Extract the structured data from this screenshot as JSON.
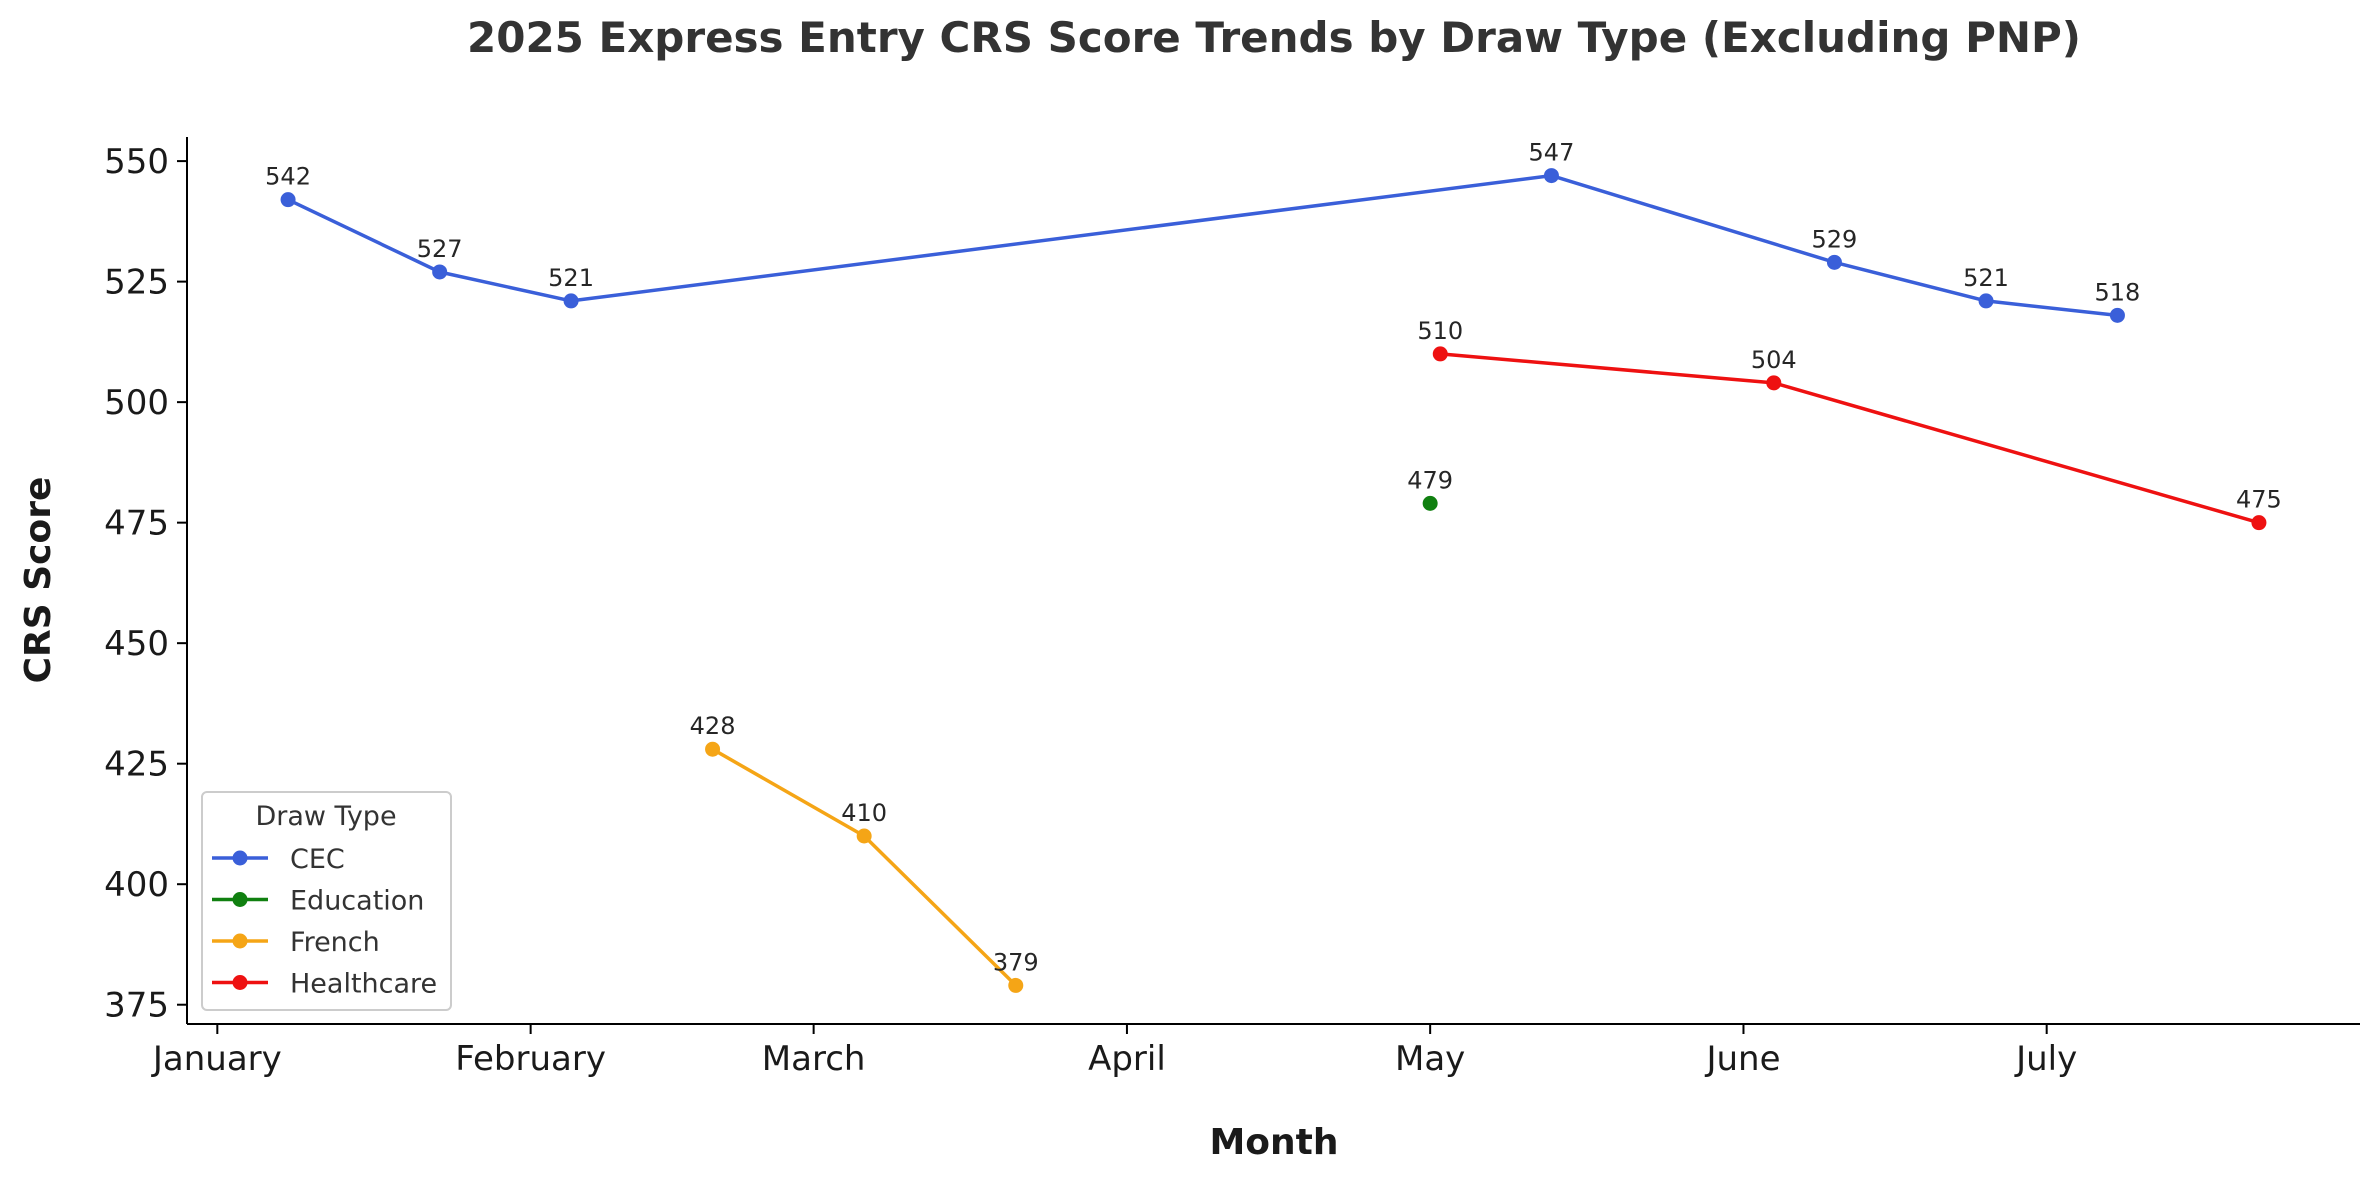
{
  "chart_data": {
    "type": "line",
    "title": "2025 Express Entry CRS Score Trends by Draw Type (Excluding PNP)",
    "xlabel": "Month",
    "ylabel": "CRS Score",
    "x_ticks": [
      {
        "label": "January",
        "date": "2025-01-01"
      },
      {
        "label": "February",
        "date": "2025-02-01"
      },
      {
        "label": "March",
        "date": "2025-03-01"
      },
      {
        "label": "April",
        "date": "2025-04-01"
      },
      {
        "label": "May",
        "date": "2025-05-01"
      },
      {
        "label": "June",
        "date": "2025-06-01"
      },
      {
        "label": "July",
        "date": "2025-07-01"
      }
    ],
    "xlim": [
      "2024-12-29",
      "2025-08-01"
    ],
    "ylim": [
      371,
      555
    ],
    "y_ticks": [
      375,
      400,
      425,
      450,
      475,
      500,
      525,
      550
    ],
    "grid": false,
    "legend": {
      "title": "Draw Type",
      "placement": "lower-left"
    },
    "series": [
      {
        "name": "CEC",
        "color": "#3a5fd9",
        "points": [
          {
            "x": "2025-01-08",
            "y": 542
          },
          {
            "x": "2025-01-23",
            "y": 527
          },
          {
            "x": "2025-02-05",
            "y": 521
          },
          {
            "x": "2025-05-13",
            "y": 547
          },
          {
            "x": "2025-06-10",
            "y": 529
          },
          {
            "x": "2025-06-25",
            "y": 521
          },
          {
            "x": "2025-07-08",
            "y": 518
          }
        ]
      },
      {
        "name": "Education",
        "color": "#108010",
        "points": [
          {
            "x": "2025-05-01",
            "y": 479
          }
        ]
      },
      {
        "name": "French",
        "color": "#f5a516",
        "points": [
          {
            "x": "2025-02-19",
            "y": 428
          },
          {
            "x": "2025-03-06",
            "y": 410
          },
          {
            "x": "2025-03-21",
            "y": 379
          }
        ]
      },
      {
        "name": "Healthcare",
        "color": "#ee1111",
        "points": [
          {
            "x": "2025-05-02",
            "y": 510
          },
          {
            "x": "2025-06-04",
            "y": 504
          },
          {
            "x": "2025-07-22",
            "y": 475
          }
        ]
      }
    ]
  }
}
